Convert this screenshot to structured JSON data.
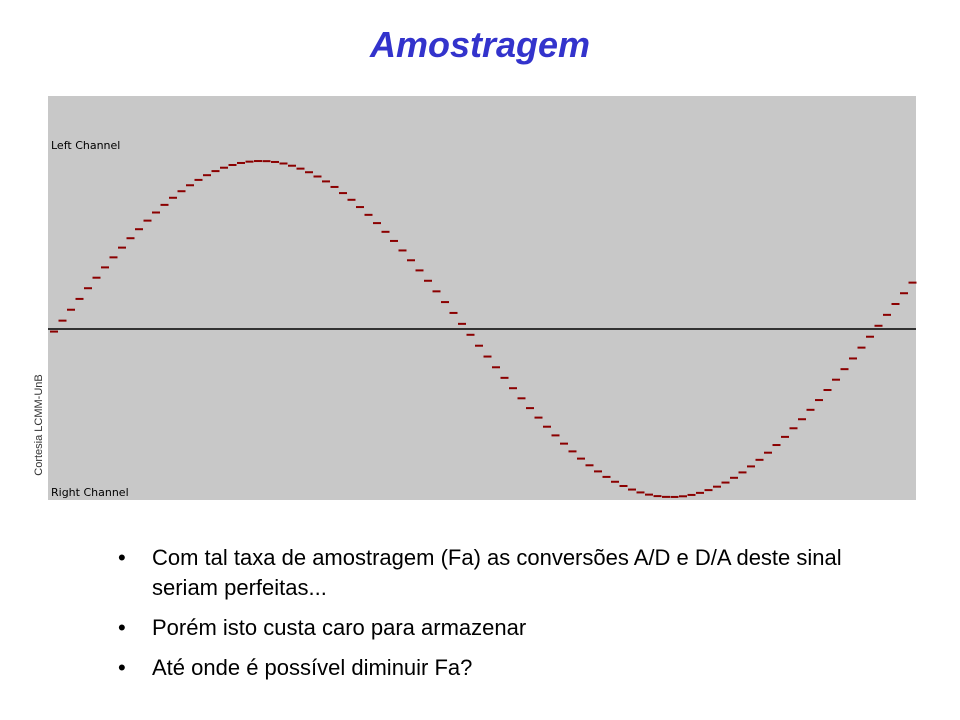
{
  "title": "Amostragem",
  "figure": {
    "top_label": "Left Channel",
    "bottom_label": "Right Channel",
    "credit": "Cortesia LCMM-UnB"
  },
  "bullets": [
    "Com tal taxa de amostragem (Fa) as conversões A/D e D/A deste sinal seriam perfeitas...",
    "Porém isto custa caro para armazenar",
    "Até onde é possível diminuir Fa?"
  ]
}
